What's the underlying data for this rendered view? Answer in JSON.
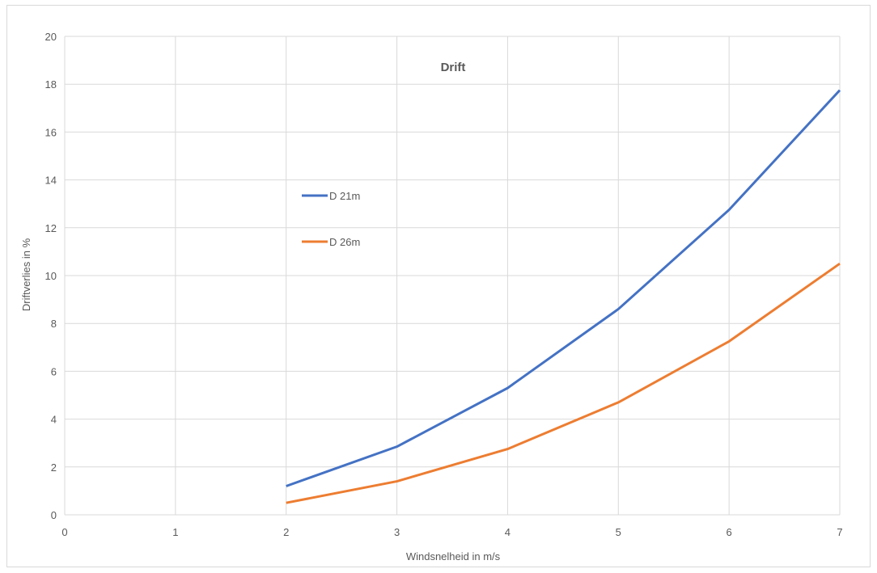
{
  "chart_data": {
    "type": "line",
    "title": "Drift",
    "xlabel": "Windsnelheid in m/s",
    "ylabel": "Driftverlies in %",
    "xlim": [
      0,
      7
    ],
    "ylim": [
      0,
      20
    ],
    "xticks": [
      "0",
      "1",
      "2",
      "3",
      "4",
      "5",
      "6",
      "7"
    ],
    "yticks": [
      "0",
      "2",
      "4",
      "6",
      "8",
      "10",
      "12",
      "14",
      "16",
      "18",
      "20"
    ],
    "grid": true,
    "legend_position": "center-left",
    "series": [
      {
        "name": "D 21m",
        "color": "#4472C4",
        "x": [
          2,
          3,
          4,
          5,
          6,
          7
        ],
        "y": [
          1.2,
          2.85,
          5.3,
          8.6,
          12.75,
          17.75
        ]
      },
      {
        "name": "D 26m",
        "color": "#ED7D31",
        "x": [
          2,
          3,
          4,
          5,
          6,
          7
        ],
        "y": [
          0.5,
          1.4,
          2.75,
          4.7,
          7.25,
          10.5
        ]
      }
    ]
  }
}
